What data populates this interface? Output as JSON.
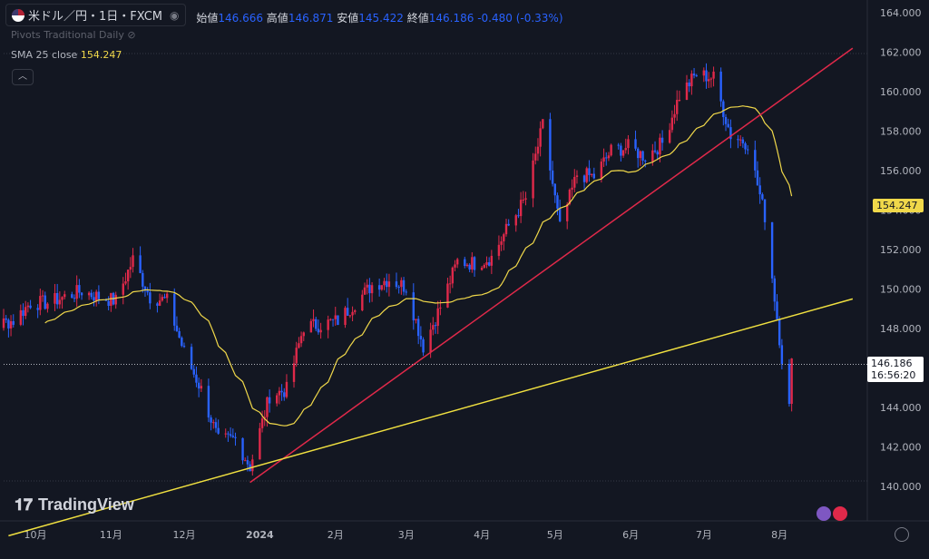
{
  "header": {
    "symbol": "米ドル／円・1日・FXCM",
    "open_label": "始値",
    "open": "146.666",
    "high_label": "高値",
    "high": "146.871",
    "low_label": "安値",
    "low": "145.422",
    "close_label": "終値",
    "close": "146.186",
    "change": "-0.480 (-0.33%)"
  },
  "indicators": {
    "pivots": "Pivots Traditional Daily",
    "sma_label": "SMA 25 close",
    "sma_value": "154.247"
  },
  "price_tags": {
    "sma": "154.247",
    "last": "146.186",
    "countdown": "16:56:20"
  },
  "watermark": "TradingView",
  "colors": {
    "up": "#e0294a",
    "down": "#2962ff",
    "sma": "#f0d84a",
    "trend_red": "#e0294a",
    "trend_yellow": "#f0e040",
    "bg": "#131722"
  },
  "chart_data": {
    "type": "candlestick",
    "symbol": "USD/JPY",
    "timeframe": "1D",
    "ylim": [
      140,
      164
    ],
    "y_ticks": [
      "140.000",
      "142.000",
      "144.000",
      "146.000",
      "148.000",
      "150.000",
      "152.000",
      "154.000",
      "156.000",
      "158.000",
      "160.000",
      "162.000",
      "164.000"
    ],
    "x_ticks": [
      "10月",
      "11月",
      "12月",
      "2024",
      "2月",
      "3月",
      "4月",
      "5月",
      "6月",
      "7月",
      "8月"
    ],
    "close_path": [
      [
        "2023-09-01",
        146.9
      ],
      [
        "2023-09-08",
        147.6
      ],
      [
        "2023-09-15",
        148.2
      ],
      [
        "2023-09-22",
        148.4
      ],
      [
        "2023-09-29",
        149.3
      ],
      [
        "2023-10-06",
        149.3
      ],
      [
        "2023-10-13",
        149.6
      ],
      [
        "2023-10-20",
        149.9
      ],
      [
        "2023-10-27",
        149.6
      ],
      [
        "2023-11-03",
        149.4
      ],
      [
        "2023-11-10",
        151.5
      ],
      [
        "2023-11-17",
        149.6
      ],
      [
        "2023-11-24",
        149.4
      ],
      [
        "2023-12-01",
        146.8
      ],
      [
        "2023-12-08",
        144.9
      ],
      [
        "2023-12-15",
        142.3
      ],
      [
        "2023-12-22",
        142.4
      ],
      [
        "2023-12-28",
        141.0
      ],
      [
        "2024-01-05",
        144.6
      ],
      [
        "2024-01-12",
        144.9
      ],
      [
        "2024-01-19",
        148.1
      ],
      [
        "2024-01-26",
        148.2
      ],
      [
        "2024-02-02",
        148.4
      ],
      [
        "2024-02-09",
        149.3
      ],
      [
        "2024-02-16",
        150.2
      ],
      [
        "2024-02-23",
        150.5
      ],
      [
        "2024-03-01",
        150.1
      ],
      [
        "2024-03-08",
        147.1
      ],
      [
        "2024-03-15",
        149.1
      ],
      [
        "2024-03-22",
        151.4
      ],
      [
        "2024-03-29",
        151.3
      ],
      [
        "2024-04-05",
        151.6
      ],
      [
        "2024-04-12",
        153.2
      ],
      [
        "2024-04-19",
        154.6
      ],
      [
        "2024-04-26",
        158.3
      ],
      [
        "2024-05-03",
        153.1
      ],
      [
        "2024-05-10",
        155.8
      ],
      [
        "2024-05-17",
        155.7
      ],
      [
        "2024-05-24",
        157.0
      ],
      [
        "2024-05-31",
        157.2
      ],
      [
        "2024-06-07",
        156.7
      ],
      [
        "2024-06-14",
        157.4
      ],
      [
        "2024-06-21",
        159.8
      ],
      [
        "2024-06-28",
        160.9
      ],
      [
        "2024-07-05",
        160.7
      ],
      [
        "2024-07-12",
        157.8
      ],
      [
        "2024-07-19",
        157.4
      ],
      [
        "2024-07-26",
        153.7
      ],
      [
        "2024-08-02",
        146.5
      ],
      [
        "2024-08-05",
        144.0
      ],
      [
        "2024-08-06",
        146.2
      ]
    ],
    "sma25": {
      "name": "SMA 25 close",
      "last": 154.247
    },
    "trendlines": [
      {
        "name": "red",
        "from": [
          "2023-12-28",
          140.2
        ],
        "to": [
          "2024-08-31",
          162.2
        ]
      },
      {
        "name": "yellow",
        "from": [
          "2023-09-20",
          137.5
        ],
        "to": [
          "2024-08-31",
          149.5
        ]
      }
    ],
    "last_price": 146.186
  }
}
